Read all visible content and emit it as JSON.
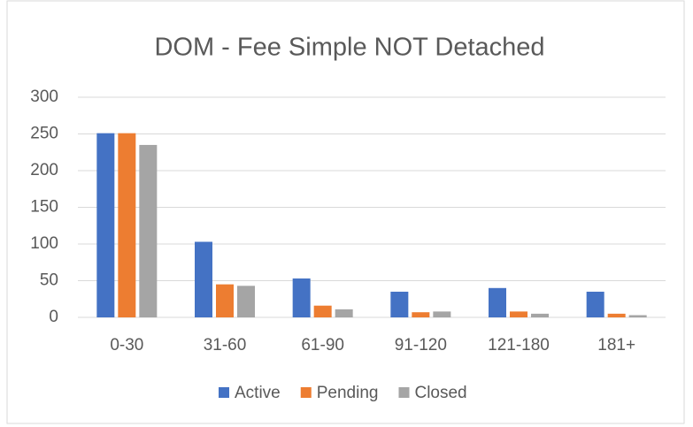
{
  "chart_data": {
    "type": "bar",
    "title": "DOM - Fee Simple NOT Detached",
    "categories": [
      "0-30",
      "31-60",
      "61-90",
      "91-120",
      "121-180",
      "181+"
    ],
    "series": [
      {
        "name": "Active",
        "color": "#4472c4",
        "values": [
          251,
          103,
          53,
          35,
          40,
          35
        ]
      },
      {
        "name": "Pending",
        "color": "#ed7d31",
        "values": [
          251,
          45,
          16,
          7,
          8,
          5
        ]
      },
      {
        "name": "Closed",
        "color": "#a5a5a5",
        "values": [
          235,
          43,
          11,
          8,
          5,
          3
        ]
      }
    ],
    "ylim": [
      0,
      300
    ],
    "yticks": [
      0,
      50,
      100,
      150,
      200,
      250,
      300
    ],
    "grid": true,
    "legend": "bottom"
  }
}
